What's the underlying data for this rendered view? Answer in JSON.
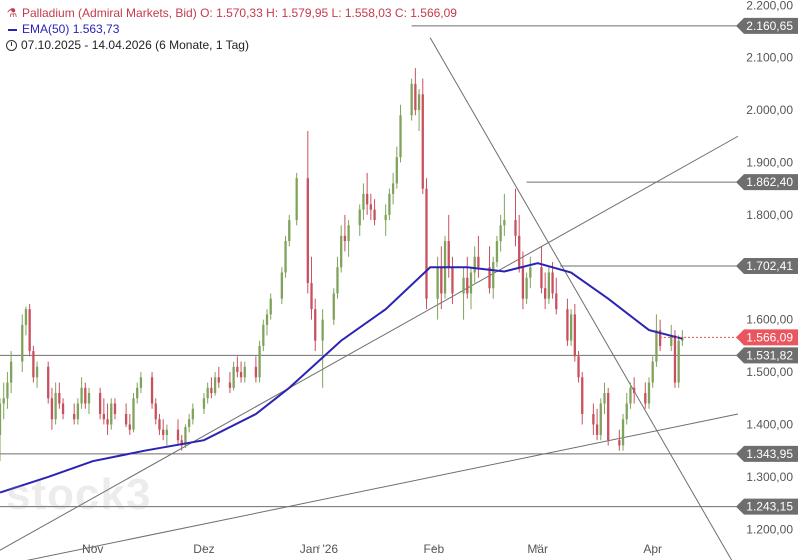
{
  "legend": {
    "instrument_line": "Palladium (Admiral Markets, Bid)",
    "o": "O: 1.570,33",
    "h": "H: 1.579,95",
    "l": "L: 1.558,03",
    "c": "C: 1.566,09",
    "ema_label": "EMA(50)",
    "ema_value": "1.563,73",
    "range": "07.10.2025 - 14.04.2026",
    "period": "(6 Monate, 1 Tag)"
  },
  "watermark": "stock3",
  "colors": {
    "up": "#7fa35b",
    "down": "#c8505f",
    "ema": "#2a23b5",
    "line": "#6e6e6e",
    "current": "#e9565f",
    "label_bg": "#6e6e6e"
  },
  "chart_data": {
    "type": "candlestick",
    "ylim": [
      1170,
      2210
    ],
    "y_ticks": [
      "1.200,00",
      "1.300,00",
      "1.400,00",
      "1.500,00",
      "1.600,00",
      "1.700,00",
      "1.800,00",
      "1.900,00",
      "2.000,00",
      "2.100,00",
      "2.200,00"
    ],
    "y_tick_values": [
      1200,
      1300,
      1400,
      1500,
      1600,
      1700,
      1800,
      1900,
      2000,
      2100,
      2200
    ],
    "x_ticks": [
      {
        "label": "Nov",
        "date": "2025-11-01"
      },
      {
        "label": "Dez",
        "date": "2025-12-01"
      },
      {
        "label": "Jan '26",
        "date": "2026-01-01"
      },
      {
        "label": "Feb",
        "date": "2026-02-01"
      },
      {
        "label": "Mär",
        "date": "2026-03-01"
      },
      {
        "label": "Apr",
        "date": "2026-04-01"
      }
    ],
    "xlim": [
      "2025-10-07",
      "2026-04-24"
    ],
    "horizontal_levels": [
      {
        "value": 2160.65,
        "label": "2.160,65",
        "from": "2026-01-26"
      },
      {
        "value": 1862.4,
        "label": "1.862,40",
        "from": "2026-02-26"
      },
      {
        "value": 1702.41,
        "label": "1.702,41",
        "from": "2026-03-07"
      },
      {
        "value": 1531.82,
        "label": "1.531,82",
        "from": "2025-10-07"
      },
      {
        "value": 1343.95,
        "label": "1.343,95",
        "from": "2025-10-07"
      },
      {
        "value": 1243.15,
        "label": "1.243,15",
        "from": "2025-10-07"
      }
    ],
    "current": {
      "value": 1566.09,
      "label": "1.566,09"
    },
    "trendlines": [
      {
        "from": [
          "2025-10-07",
          1160
        ],
        "to": [
          "2026-04-24",
          1950
        ]
      },
      {
        "from": [
          "2025-10-07",
          1130
        ],
        "to": [
          "2026-04-24",
          1420
        ]
      },
      {
        "from": [
          "2026-01-31",
          2138
        ],
        "to": [
          "2026-04-24",
          1120
        ]
      }
    ],
    "ohlc": [
      [
        "2025-10-07",
        1380,
        1450,
        1330,
        1440
      ],
      [
        "2025-10-08",
        1440,
        1480,
        1410,
        1450
      ],
      [
        "2025-10-09",
        1450,
        1500,
        1430,
        1480
      ],
      [
        "2025-10-10",
        1480,
        1540,
        1460,
        1520
      ],
      [
        "2025-10-13",
        1520,
        1610,
        1500,
        1590
      ],
      [
        "2025-10-14",
        1590,
        1625,
        1570,
        1620
      ],
      [
        "2025-10-15",
        1620,
        1630,
        1530,
        1540
      ],
      [
        "2025-10-16",
        1540,
        1550,
        1480,
        1490
      ],
      [
        "2025-10-17",
        1490,
        1520,
        1470,
        1510
      ],
      [
        "2025-10-20",
        1510,
        1520,
        1440,
        1450
      ],
      [
        "2025-10-21",
        1450,
        1470,
        1390,
        1410
      ],
      [
        "2025-10-22",
        1410,
        1480,
        1400,
        1460
      ],
      [
        "2025-10-23",
        1460,
        1480,
        1430,
        1440
      ],
      [
        "2025-10-24",
        1440,
        1450,
        1410,
        1420
      ],
      [
        "2025-10-27",
        1420,
        1440,
        1400,
        1410
      ],
      [
        "2025-10-28",
        1410,
        1450,
        1400,
        1440
      ],
      [
        "2025-10-29",
        1440,
        1490,
        1430,
        1470
      ],
      [
        "2025-10-30",
        1470,
        1480,
        1430,
        1440
      ],
      [
        "2025-10-31",
        1440,
        1470,
        1420,
        1460
      ],
      [
        "2025-11-03",
        1460,
        1470,
        1410,
        1420
      ],
      [
        "2025-11-04",
        1420,
        1450,
        1400,
        1410
      ],
      [
        "2025-11-05",
        1410,
        1440,
        1380,
        1400
      ],
      [
        "2025-11-06",
        1400,
        1450,
        1390,
        1440
      ],
      [
        "2025-11-07",
        1440,
        1450,
        1410,
        1420
      ],
      [
        "2025-11-10",
        1420,
        1440,
        1395,
        1400
      ],
      [
        "2025-11-11",
        1400,
        1420,
        1380,
        1390
      ],
      [
        "2025-11-12",
        1390,
        1460,
        1385,
        1450
      ],
      [
        "2025-11-13",
        1450,
        1480,
        1440,
        1470
      ],
      [
        "2025-11-14",
        1470,
        1500,
        1460,
        1490
      ],
      [
        "2025-11-17",
        1490,
        1500,
        1430,
        1440
      ],
      [
        "2025-11-18",
        1440,
        1450,
        1400,
        1410
      ],
      [
        "2025-11-19",
        1410,
        1420,
        1380,
        1390
      ],
      [
        "2025-11-20",
        1390,
        1410,
        1370,
        1380
      ],
      [
        "2025-11-21",
        1380,
        1400,
        1360,
        1390
      ],
      [
        "2025-11-24",
        1390,
        1410,
        1360,
        1370
      ],
      [
        "2025-11-25",
        1370,
        1380,
        1350,
        1360
      ],
      [
        "2025-11-26",
        1360,
        1400,
        1355,
        1395
      ],
      [
        "2025-11-27",
        1395,
        1420,
        1385,
        1410
      ],
      [
        "2025-11-28",
        1410,
        1440,
        1400,
        1430
      ],
      [
        "2025-12-01",
        1430,
        1460,
        1420,
        1450
      ],
      [
        "2025-12-02",
        1450,
        1480,
        1440,
        1470
      ],
      [
        "2025-12-03",
        1470,
        1490,
        1450,
        1460
      ],
      [
        "2025-12-04",
        1460,
        1500,
        1455,
        1490
      ],
      [
        "2025-12-05",
        1490,
        1510,
        1470,
        1480
      ],
      [
        "2025-12-08",
        1480,
        1500,
        1460,
        1470
      ],
      [
        "2025-12-09",
        1470,
        1520,
        1465,
        1510
      ],
      [
        "2025-12-10",
        1510,
        1530,
        1490,
        1500
      ],
      [
        "2025-12-11",
        1500,
        1520,
        1480,
        1490
      ],
      [
        "2025-12-12",
        1490,
        1520,
        1480,
        1510
      ],
      [
        "2025-12-15",
        1510,
        1530,
        1480,
        1490
      ],
      [
        "2025-12-16",
        1490,
        1560,
        1480,
        1550
      ],
      [
        "2025-12-17",
        1550,
        1600,
        1540,
        1590
      ],
      [
        "2025-12-18",
        1590,
        1620,
        1570,
        1610
      ],
      [
        "2025-12-19",
        1610,
        1650,
        1600,
        1640
      ],
      [
        "2025-12-22",
        1640,
        1700,
        1630,
        1690
      ],
      [
        "2025-12-23",
        1690,
        1760,
        1680,
        1750
      ],
      [
        "2025-12-24",
        1750,
        1800,
        1740,
        1790
      ],
      [
        "2025-12-26",
        1790,
        1880,
        1780,
        1870
      ],
      [
        "2025-12-29",
        1870,
        1960,
        1650,
        1670
      ],
      [
        "2025-12-30",
        1670,
        1720,
        1600,
        1620
      ],
      [
        "2025-12-31",
        1620,
        1640,
        1540,
        1560
      ],
      [
        "2026-01-02",
        1560,
        1620,
        1470,
        1600
      ],
      [
        "2026-01-05",
        1600,
        1660,
        1590,
        1650
      ],
      [
        "2026-01-06",
        1650,
        1720,
        1640,
        1700
      ],
      [
        "2026-01-07",
        1700,
        1780,
        1690,
        1760
      ],
      [
        "2026-01-08",
        1760,
        1800,
        1730,
        1750
      ],
      [
        "2026-01-09",
        1750,
        1790,
        1720,
        1780
      ],
      [
        "2026-01-12",
        1780,
        1820,
        1760,
        1810
      ],
      [
        "2026-01-13",
        1810,
        1860,
        1790,
        1840
      ],
      [
        "2026-01-14",
        1840,
        1880,
        1800,
        1820
      ],
      [
        "2026-01-15",
        1820,
        1840,
        1790,
        1810
      ],
      [
        "2026-01-16",
        1810,
        1830,
        1780,
        1790
      ],
      [
        "2026-01-19",
        1790,
        1820,
        1760,
        1800
      ],
      [
        "2026-01-20",
        1800,
        1850,
        1790,
        1840
      ],
      [
        "2026-01-21",
        1840,
        1880,
        1820,
        1860
      ],
      [
        "2026-01-22",
        1860,
        1930,
        1850,
        1910
      ],
      [
        "2026-01-23",
        1910,
        2010,
        1900,
        1990
      ],
      [
        "2026-01-26",
        1990,
        2060,
        1980,
        2050
      ],
      [
        "2026-01-27",
        2050,
        2080,
        1990,
        2000
      ],
      [
        "2026-01-28",
        2000,
        2040,
        1960,
        2030
      ],
      [
        "2026-01-29",
        2030,
        2060,
        1840,
        1850
      ],
      [
        "2026-01-30",
        1850,
        1870,
        1620,
        1640
      ],
      [
        "2026-02-02",
        1640,
        1720,
        1600,
        1700
      ],
      [
        "2026-02-03",
        1700,
        1740,
        1620,
        1650
      ],
      [
        "2026-02-04",
        1650,
        1760,
        1640,
        1750
      ],
      [
        "2026-02-05",
        1750,
        1800,
        1680,
        1700
      ],
      [
        "2026-02-06",
        1700,
        1720,
        1630,
        1650
      ],
      [
        "2026-02-09",
        1650,
        1700,
        1600,
        1680
      ],
      [
        "2026-02-10",
        1680,
        1720,
        1640,
        1650
      ],
      [
        "2026-02-11",
        1650,
        1700,
        1620,
        1690
      ],
      [
        "2026-02-12",
        1690,
        1740,
        1670,
        1720
      ],
      [
        "2026-02-13",
        1720,
        1760,
        1680,
        1700
      ],
      [
        "2026-02-16",
        1700,
        1740,
        1650,
        1660
      ],
      [
        "2026-02-17",
        1660,
        1720,
        1640,
        1710
      ],
      [
        "2026-02-18",
        1710,
        1760,
        1700,
        1750
      ],
      [
        "2026-02-19",
        1750,
        1800,
        1730,
        1780
      ],
      [
        "2026-02-20",
        1780,
        1840,
        1760,
        1790
      ],
      [
        "2026-02-23",
        1790,
        1850,
        1740,
        1760
      ],
      [
        "2026-02-24",
        1760,
        1800,
        1690,
        1700
      ],
      [
        "2026-02-25",
        1700,
        1730,
        1620,
        1640
      ],
      [
        "2026-02-26",
        1640,
        1690,
        1630,
        1680
      ],
      [
        "2026-02-27",
        1680,
        1720,
        1660,
        1700
      ],
      [
        "2026-03-02",
        1700,
        1740,
        1650,
        1660
      ],
      [
        "2026-03-03",
        1660,
        1690,
        1620,
        1640
      ],
      [
        "2026-03-04",
        1640,
        1700,
        1630,
        1690
      ],
      [
        "2026-03-05",
        1690,
        1710,
        1640,
        1650
      ],
      [
        "2026-03-06",
        1650,
        1680,
        1610,
        1620
      ],
      [
        "2026-03-09",
        1620,
        1640,
        1550,
        1560
      ],
      [
        "2026-03-10",
        1560,
        1620,
        1550,
        1610
      ],
      [
        "2026-03-11",
        1610,
        1630,
        1520,
        1530
      ],
      [
        "2026-03-12",
        1530,
        1540,
        1480,
        1490
      ],
      [
        "2026-03-13",
        1490,
        1500,
        1400,
        1420
      ],
      [
        "2026-03-16",
        1420,
        1440,
        1380,
        1400
      ],
      [
        "2026-03-17",
        1400,
        1430,
        1370,
        1380
      ],
      [
        "2026-03-18",
        1380,
        1450,
        1370,
        1440
      ],
      [
        "2026-03-19",
        1440,
        1480,
        1420,
        1460
      ],
      [
        "2026-03-20",
        1460,
        1470,
        1360,
        1370
      ],
      [
        "2026-03-23",
        1370,
        1390,
        1350,
        1360
      ],
      [
        "2026-03-24",
        1360,
        1420,
        1350,
        1410
      ],
      [
        "2026-03-25",
        1410,
        1460,
        1400,
        1440
      ],
      [
        "2026-03-26",
        1440,
        1480,
        1430,
        1470
      ],
      [
        "2026-03-27",
        1470,
        1490,
        1440,
        1460
      ],
      [
        "2026-03-30",
        1460,
        1480,
        1430,
        1440
      ],
      [
        "2026-03-31",
        1440,
        1490,
        1430,
        1480
      ],
      [
        "2026-04-01",
        1480,
        1530,
        1470,
        1520
      ],
      [
        "2026-04-02",
        1520,
        1610,
        1510,
        1580
      ],
      [
        "2026-04-03",
        1580,
        1600,
        1540,
        1550
      ],
      [
        "2026-04-06",
        1550,
        1590,
        1540,
        1570
      ],
      [
        "2026-04-07",
        1570,
        1580,
        1470,
        1480
      ],
      [
        "2026-04-08",
        1480,
        1570,
        1470,
        1560
      ],
      [
        "2026-04-09",
        1560,
        1580,
        1550,
        1566
      ]
    ],
    "ema": [
      [
        "2025-10-07",
        1270
      ],
      [
        "2025-10-20",
        1300
      ],
      [
        "2025-11-01",
        1330
      ],
      [
        "2025-11-15",
        1350
      ],
      [
        "2025-12-01",
        1370
      ],
      [
        "2025-12-15",
        1420
      ],
      [
        "2025-12-24",
        1470
      ],
      [
        "2026-01-07",
        1560
      ],
      [
        "2026-01-19",
        1620
      ],
      [
        "2026-01-31",
        1700
      ],
      [
        "2026-02-10",
        1700
      ],
      [
        "2026-02-20",
        1692
      ],
      [
        "2026-03-01",
        1708
      ],
      [
        "2026-03-10",
        1690
      ],
      [
        "2026-03-20",
        1640
      ],
      [
        "2026-03-31",
        1580
      ],
      [
        "2026-04-09",
        1563.73
      ]
    ]
  }
}
